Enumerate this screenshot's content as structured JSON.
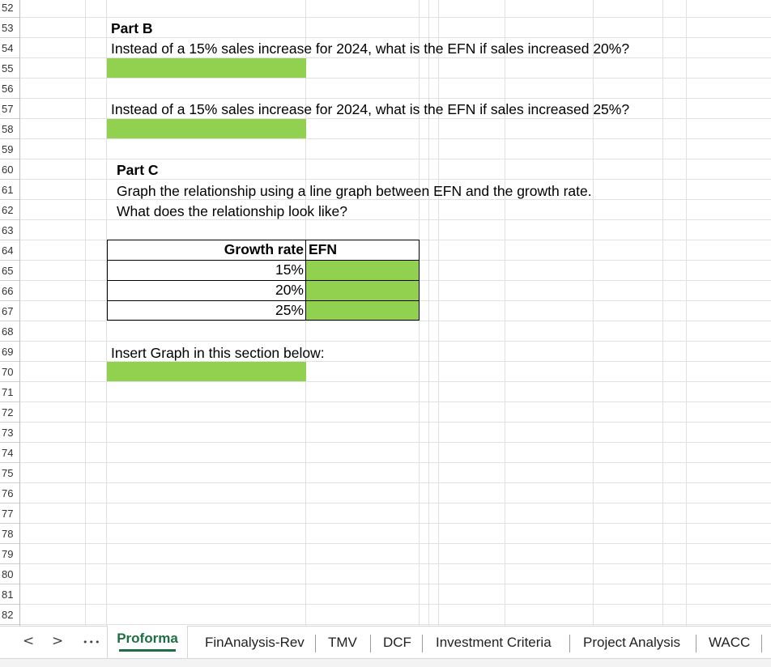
{
  "rows": [
    "52",
    "53",
    "54",
    "55",
    "56",
    "57",
    "58",
    "59",
    "60",
    "61",
    "62",
    "63",
    "64",
    "65",
    "66",
    "67",
    "68",
    "69",
    "70",
    "71",
    "72",
    "73",
    "74",
    "75",
    "76",
    "77",
    "78",
    "79",
    "80",
    "81",
    "82"
  ],
  "part_b": {
    "heading": "Part B",
    "q1": "Instead of a 15% sales increase for 2024, what is the EFN if sales increased 20%?",
    "q2": "Instead of a 15% sales increase for 2024, what is the EFN if sales increased 25%?"
  },
  "part_c": {
    "heading": "Part C",
    "line1": "Graph the relationship using a line graph between EFN and the growth rate.",
    "line2": "What does the relationship look like?"
  },
  "table": {
    "headers": [
      "Growth rate",
      "EFN"
    ],
    "rows": [
      {
        "growth": "15%",
        "efn": ""
      },
      {
        "growth": "20%",
        "efn": ""
      },
      {
        "growth": "25%",
        "efn": ""
      }
    ]
  },
  "insert_graph_label": "Insert Graph in this section below:",
  "colors": {
    "input_fill": "#92d050",
    "active_tab": "#1f6e43"
  },
  "tabbar": {
    "prev": "<",
    "next": ">",
    "more": "•••",
    "tabs": [
      "Proforma",
      "FinAnalysis-Rev",
      "TMV",
      "DCF",
      "Investment Criteria",
      "Project Analysis",
      "WACC"
    ],
    "active": "Proforma"
  }
}
